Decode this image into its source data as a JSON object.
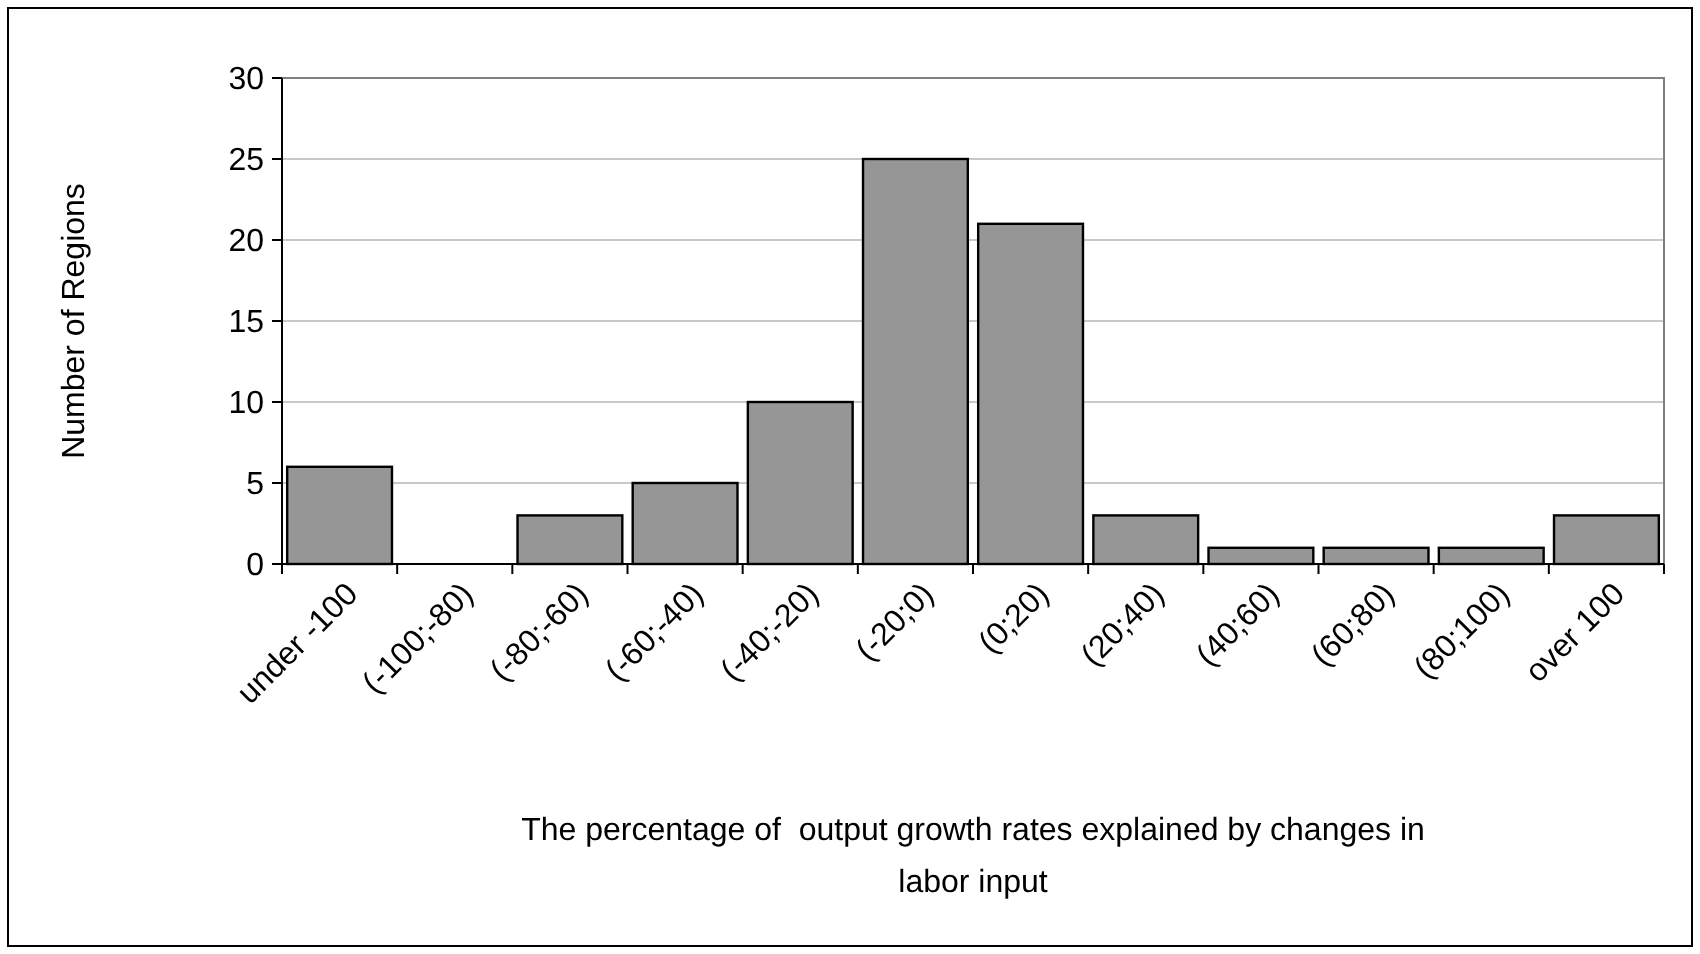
{
  "chart_data": {
    "type": "bar",
    "xlabel": "The percentage of  output growth rates explained by changes in labor input",
    "ylabel": "Number of Regions",
    "categories": [
      "under -100",
      "(-100;-80)",
      "(-80;-60)",
      "(-60;-40)",
      "(-40;-20)",
      "(-20;0)",
      "(0;20)",
      "(20;40)",
      "(40;60)",
      "(60;80)",
      "(80;100)",
      "over 100"
    ],
    "values": [
      6,
      0,
      3,
      5,
      10,
      25,
      21,
      3,
      1,
      1,
      1,
      3
    ],
    "color": "#969696",
    "ylim": [
      0,
      30
    ],
    "yticks": [
      0,
      5,
      10,
      15,
      20,
      25,
      30
    ],
    "grid": "y"
  }
}
